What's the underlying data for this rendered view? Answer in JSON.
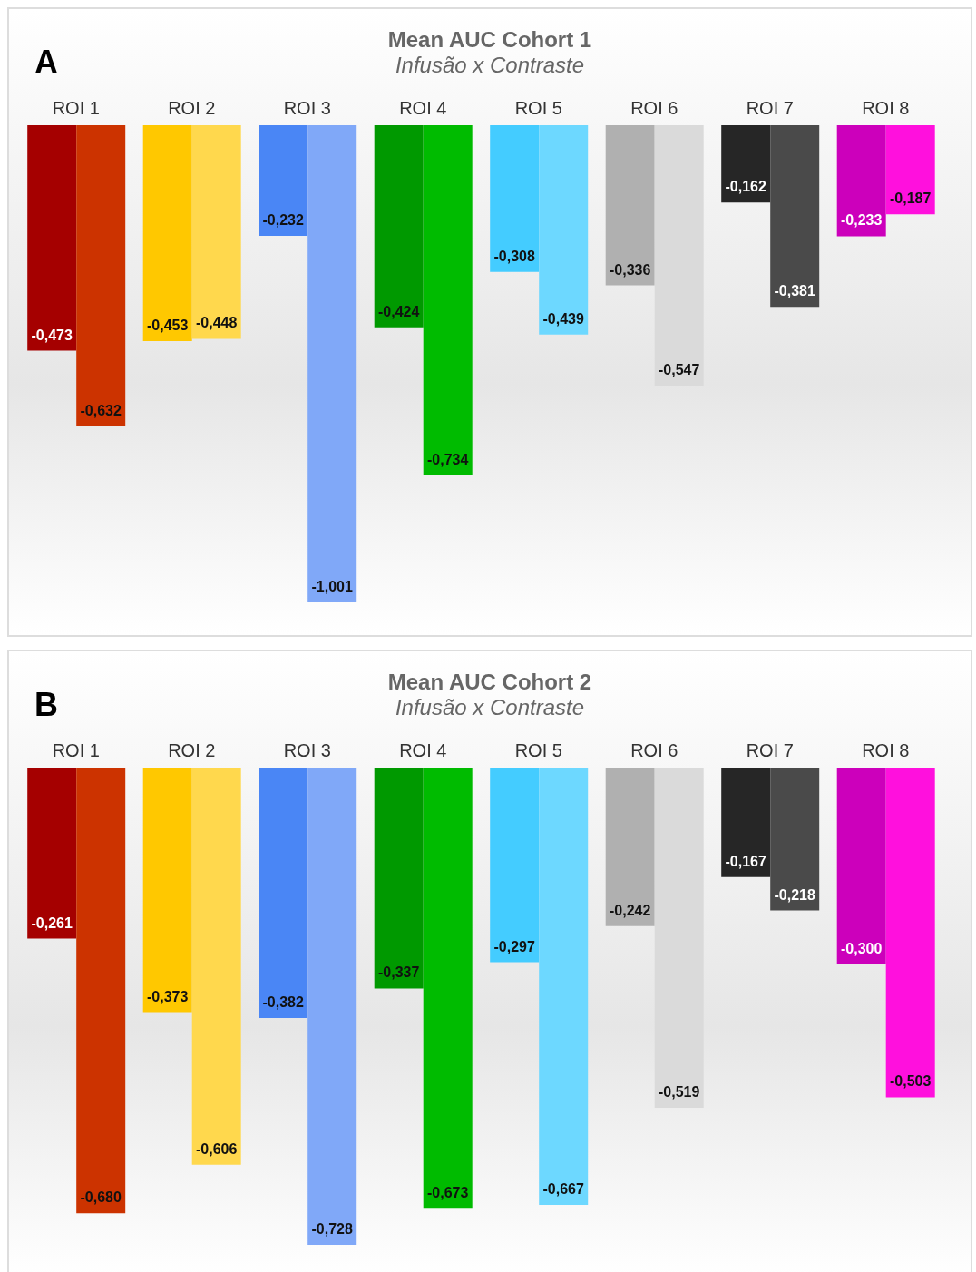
{
  "chart_data": [
    {
      "type": "bar",
      "title": "Mean AUC Cohort 1",
      "subtitle": "Infusão x Contraste",
      "annotations": [
        "A"
      ],
      "categories": [
        "ROI 1",
        "ROI 2",
        "ROI 3",
        "ROI 4",
        "ROI 5",
        "ROI 6",
        "ROI 7",
        "ROI 8"
      ],
      "series": [
        {
          "colors": [
            "#a50000",
            "#ffc800",
            "#4a86f5",
            "#009900",
            "#44ccff",
            "#b0b0b0",
            "#262626",
            "#cc00bb"
          ],
          "values": [
            -0.473,
            -0.453,
            -0.232,
            -0.424,
            -0.308,
            -0.336,
            -0.162,
            -0.233
          ],
          "value_labels": [
            "-0,473",
            "-0,453",
            "-0,232",
            "-0,424",
            "-0,308",
            "-0,336",
            "-0,162",
            "-0,233"
          ]
        },
        {
          "colors": [
            "#cc3300",
            "#ffd84d",
            "#80a8f8",
            "#00bb00",
            "#6dd8ff",
            "#dadada",
            "#4a4a4a",
            "#ff10dd"
          ],
          "values": [
            -0.632,
            -0.448,
            -1.001,
            -0.734,
            -0.439,
            -0.547,
            -0.381,
            -0.187
          ],
          "value_labels": [
            "-0,632",
            "-0,448",
            "-1,001",
            "-0,734",
            "-0,439",
            "-0,547",
            "-0,381",
            "-0,187"
          ]
        }
      ]
    },
    {
      "type": "bar",
      "title": "Mean AUC Cohort 2",
      "subtitle": "Infusão x Contraste",
      "annotations": [
        "B"
      ],
      "categories": [
        "ROI 1",
        "ROI 2",
        "ROI 3",
        "ROI 4",
        "ROI 5",
        "ROI 6",
        "ROI 7",
        "ROI 8"
      ],
      "series": [
        {
          "colors": [
            "#a50000",
            "#ffc800",
            "#4a86f5",
            "#009900",
            "#44ccff",
            "#b0b0b0",
            "#262626",
            "#cc00bb"
          ],
          "values": [
            -0.261,
            -0.373,
            -0.382,
            -0.337,
            -0.297,
            -0.242,
            -0.167,
            -0.3
          ],
          "value_labels": [
            "-0,261",
            "-0,373",
            "-0,382",
            "-0,337",
            "-0,297",
            "-0,242",
            "-0,167",
            "-0,300"
          ]
        },
        {
          "colors": [
            "#cc3300",
            "#ffd84d",
            "#80a8f8",
            "#00bb00",
            "#6dd8ff",
            "#dadada",
            "#4a4a4a",
            "#ff10dd"
          ],
          "values": [
            -0.68,
            -0.606,
            -0.728,
            -0.673,
            -0.667,
            -0.519,
            -0.218,
            -0.503
          ],
          "value_labels": [
            "-0,680",
            "-0,606",
            "-0,728",
            "-0,673",
            "-0,667",
            "-0,519",
            "-0,218",
            "-0,503"
          ]
        }
      ]
    }
  ]
}
